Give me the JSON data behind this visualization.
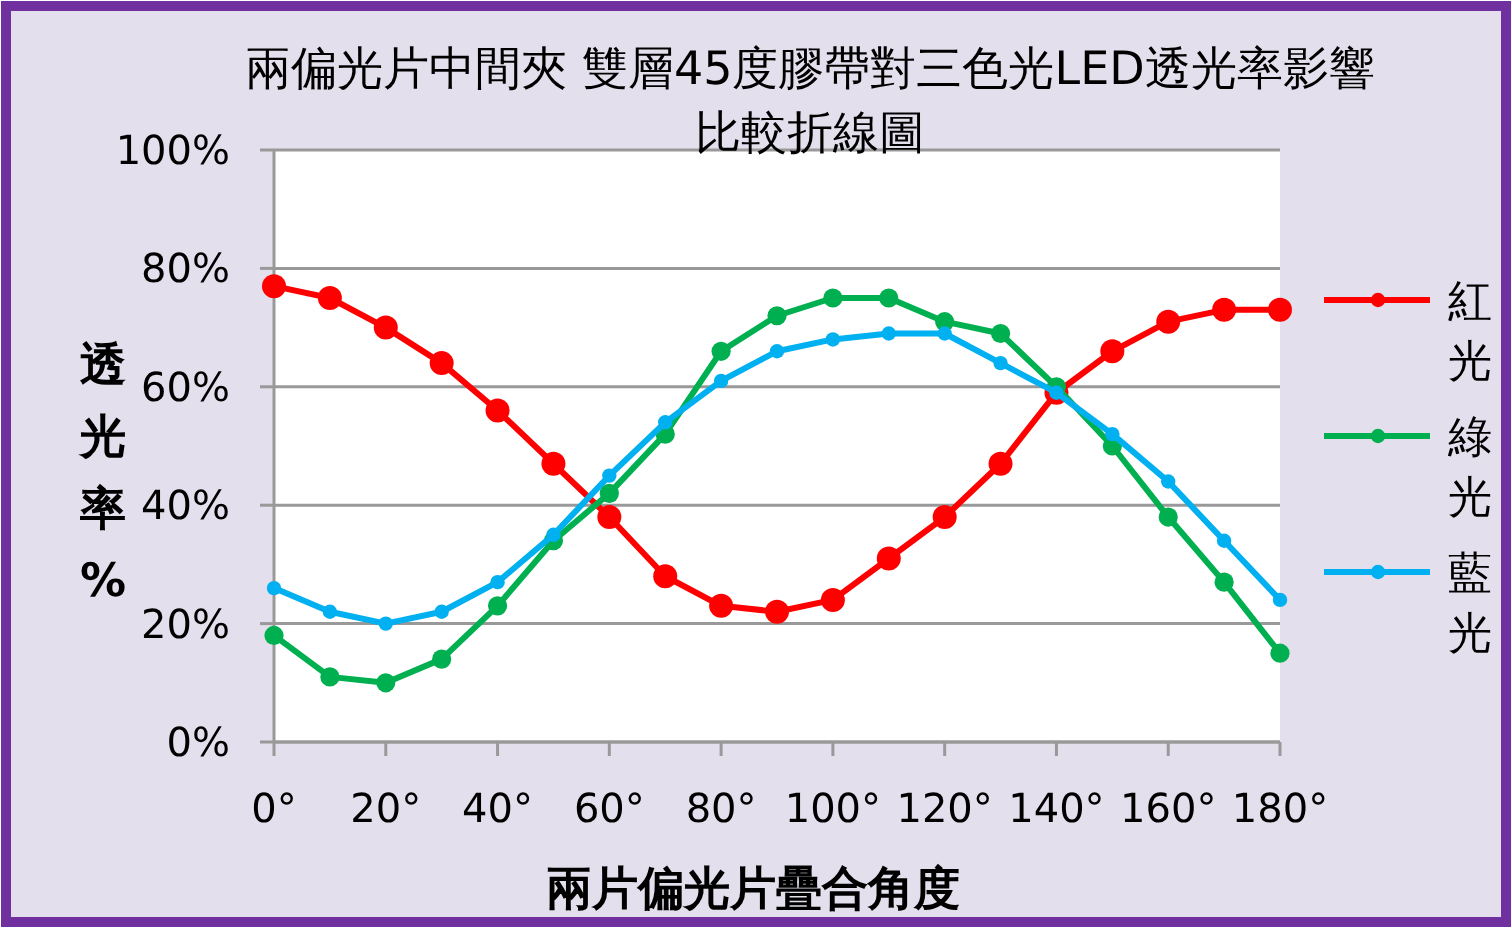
{
  "chart_data": {
    "type": "line",
    "title": "兩偏光片中間夾 雙層45度膠帶對三色光LED透光率影響比較折線圖",
    "xlabel": "兩片偏光片疊合角度",
    "ylabel": "透光率%",
    "x": [
      0,
      10,
      20,
      30,
      40,
      50,
      60,
      70,
      80,
      90,
      100,
      110,
      120,
      130,
      140,
      150,
      160,
      170,
      180
    ],
    "series": [
      {
        "name": "紅光",
        "color": "#ff0000",
        "values": [
          77,
          75,
          70,
          64,
          56,
          47,
          38,
          28,
          23,
          22,
          24,
          31,
          38,
          47,
          59,
          66,
          71,
          73,
          73
        ]
      },
      {
        "name": "綠光",
        "color": "#00b050",
        "values": [
          18,
          11,
          10,
          14,
          23,
          34,
          42,
          52,
          66,
          72,
          75,
          75,
          71,
          69,
          60,
          50,
          38,
          27,
          15
        ]
      },
      {
        "name": "藍光",
        "color": "#00b0f0",
        "values": [
          26,
          22,
          20,
          22,
          27,
          35,
          45,
          54,
          61,
          66,
          68,
          69,
          69,
          64,
          59,
          52,
          44,
          34,
          24
        ]
      }
    ],
    "xlim": [
      0,
      180
    ],
    "xticks": [
      {
        "value": 0,
        "label": "0°"
      },
      {
        "value": 20,
        "label": "20°"
      },
      {
        "value": 40,
        "label": "40°"
      },
      {
        "value": 60,
        "label": "60°"
      },
      {
        "value": 80,
        "label": "80°"
      },
      {
        "value": 100,
        "label": "100°"
      },
      {
        "value": 120,
        "label": "120°"
      },
      {
        "value": 140,
        "label": "140°"
      },
      {
        "value": 160,
        "label": "160°"
      },
      {
        "value": 180,
        "label": "180°"
      }
    ],
    "ylim": [
      0,
      100
    ],
    "yticks": [
      {
        "value": 0,
        "label": "0%"
      },
      {
        "value": 20,
        "label": "20%"
      },
      {
        "value": 40,
        "label": "40%"
      },
      {
        "value": 60,
        "label": "60%"
      },
      {
        "value": 80,
        "label": "80%"
      },
      {
        "value": 100,
        "label": "100%"
      }
    ],
    "grid": "y",
    "legend": "right",
    "marker": "circle",
    "line_style": "solid"
  }
}
